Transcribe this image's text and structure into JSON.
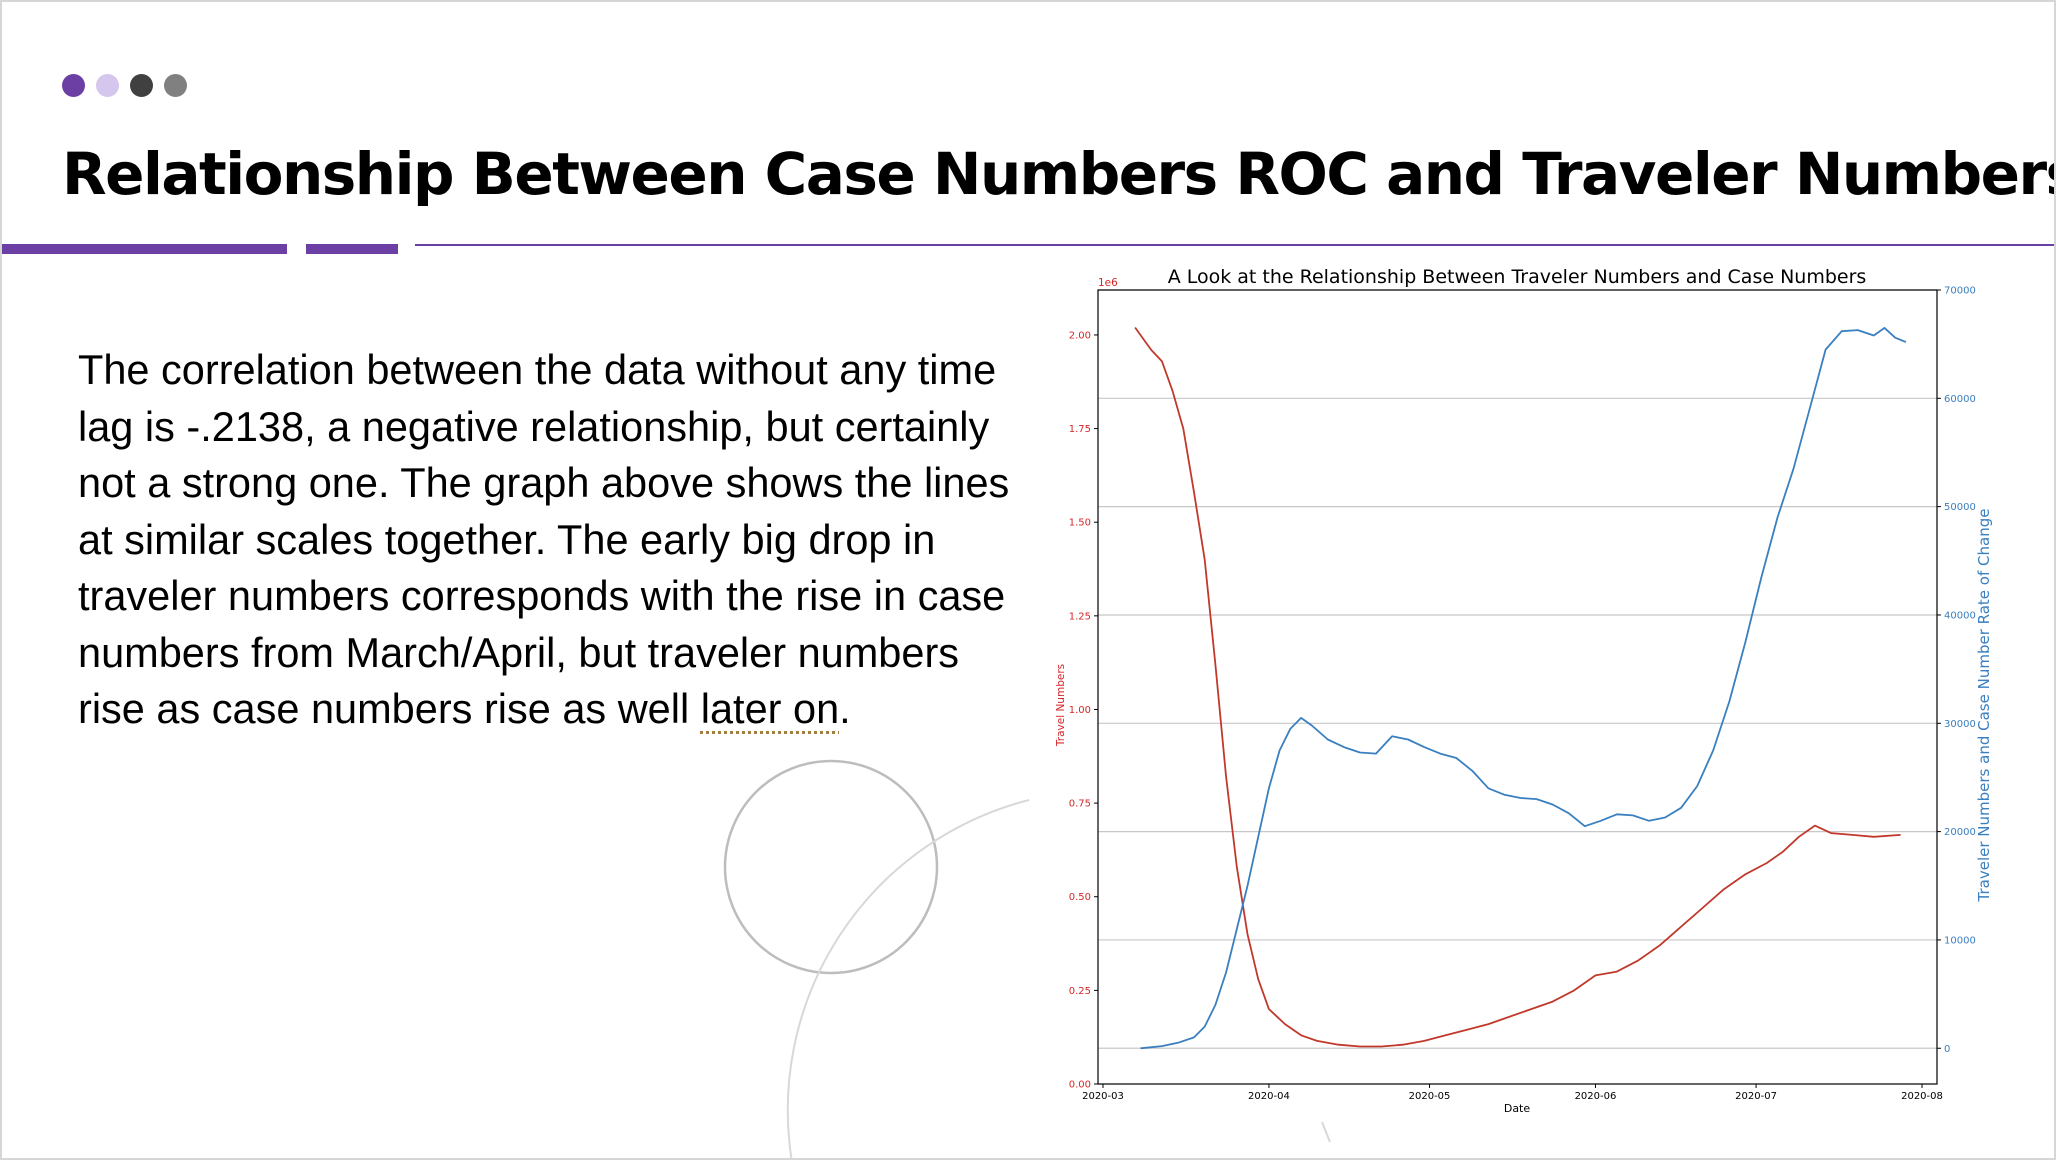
{
  "slide": {
    "title": "Relationship Between Case Numbers ROC and Traveler Numbers",
    "dots": [
      "#6b3fa3",
      "#d5c6ee",
      "#404040",
      "#808080"
    ],
    "accent": "#6b3fa3",
    "body_main": "The correlation between the data without any time lag is -.2138, a negative relationship, but certainly not a strong one.  The graph above shows the lines at similar scales together. The early big drop in traveler numbers corresponds with the rise in case numbers from March/April, but traveler numbers rise as case numbers rise as well ",
    "body_flagged": "later on",
    "body_end": "."
  },
  "chart_data": {
    "type": "line",
    "title": "A Look at the Relationship Between Traveler Numbers and Case Numbers",
    "xlabel": "Date",
    "x_ticks": [
      "2020-03",
      "2020-04",
      "2020-05",
      "2020-06",
      "2020-07",
      "2020-08"
    ],
    "x_range": [
      "2020-03-01",
      "2020-08-01"
    ],
    "y_left": {
      "label": "Travel Numbers",
      "multiplier": "1e6",
      "ticks": [
        "0.00",
        "0.25",
        "0.50",
        "0.75",
        "1.00",
        "1.25",
        "1.50",
        "1.75",
        "2.00"
      ],
      "range": [
        0,
        2.12
      ],
      "color": "#d62728"
    },
    "y_right": {
      "label": "Traveler Numbers and Case Number Rate of Change",
      "ticks": [
        "0",
        "10000",
        "20000",
        "30000",
        "40000",
        "50000",
        "60000",
        "70000"
      ],
      "range": [
        -3300,
        70000
      ],
      "color": "#1f77b4"
    },
    "grid": "horizontal lines on right axis",
    "legend": "none",
    "series": [
      {
        "axis": "left",
        "color": "#c0392b",
        "points": [
          [
            "2020-03-07",
            2.02
          ],
          [
            "2020-03-10",
            1.96
          ],
          [
            "2020-03-12",
            1.93
          ],
          [
            "2020-03-14",
            1.85
          ],
          [
            "2020-03-16",
            1.75
          ],
          [
            "2020-03-18",
            1.58
          ],
          [
            "2020-03-20",
            1.4
          ],
          [
            "2020-03-22",
            1.12
          ],
          [
            "2020-03-24",
            0.82
          ],
          [
            "2020-03-26",
            0.58
          ],
          [
            "2020-03-28",
            0.4
          ],
          [
            "2020-03-30",
            0.28
          ],
          [
            "2020-04-01",
            0.2
          ],
          [
            "2020-04-04",
            0.16
          ],
          [
            "2020-04-07",
            0.13
          ],
          [
            "2020-04-10",
            0.115
          ],
          [
            "2020-04-14",
            0.105
          ],
          [
            "2020-04-18",
            0.1
          ],
          [
            "2020-04-22",
            0.1
          ],
          [
            "2020-04-26",
            0.105
          ],
          [
            "2020-04-30",
            0.115
          ],
          [
            "2020-05-04",
            0.13
          ],
          [
            "2020-05-08",
            0.145
          ],
          [
            "2020-05-12",
            0.16
          ],
          [
            "2020-05-16",
            0.18
          ],
          [
            "2020-05-20",
            0.2
          ],
          [
            "2020-05-24",
            0.22
          ],
          [
            "2020-05-28",
            0.25
          ],
          [
            "2020-06-01",
            0.29
          ],
          [
            "2020-06-05",
            0.3
          ],
          [
            "2020-06-09",
            0.33
          ],
          [
            "2020-06-13",
            0.37
          ],
          [
            "2020-06-17",
            0.42
          ],
          [
            "2020-06-21",
            0.47
          ],
          [
            "2020-06-25",
            0.52
          ],
          [
            "2020-06-29",
            0.56
          ],
          [
            "2020-07-03",
            0.59
          ],
          [
            "2020-07-06",
            0.62
          ],
          [
            "2020-07-09",
            0.66
          ],
          [
            "2020-07-12",
            0.69
          ],
          [
            "2020-07-15",
            0.67
          ],
          [
            "2020-07-19",
            0.665
          ],
          [
            "2020-07-23",
            0.66
          ],
          [
            "2020-07-28",
            0.665
          ]
        ]
      },
      {
        "axis": "right",
        "color": "#3a7fbf",
        "points": [
          [
            "2020-03-08",
            0
          ],
          [
            "2020-03-12",
            200
          ],
          [
            "2020-03-15",
            500
          ],
          [
            "2020-03-18",
            1000
          ],
          [
            "2020-03-20",
            2000
          ],
          [
            "2020-03-22",
            4000
          ],
          [
            "2020-03-24",
            7000
          ],
          [
            "2020-03-26",
            11000
          ],
          [
            "2020-03-28",
            15000
          ],
          [
            "2020-03-30",
            19500
          ],
          [
            "2020-04-01",
            24000
          ],
          [
            "2020-04-03",
            27500
          ],
          [
            "2020-04-05",
            29500
          ],
          [
            "2020-04-07",
            30500
          ],
          [
            "2020-04-09",
            29800
          ],
          [
            "2020-04-12",
            28500
          ],
          [
            "2020-04-15",
            27800
          ],
          [
            "2020-04-18",
            27300
          ],
          [
            "2020-04-21",
            27200
          ],
          [
            "2020-04-24",
            28800
          ],
          [
            "2020-04-27",
            28500
          ],
          [
            "2020-04-30",
            27800
          ],
          [
            "2020-05-03",
            27200
          ],
          [
            "2020-05-06",
            26800
          ],
          [
            "2020-05-09",
            25600
          ],
          [
            "2020-05-12",
            24000
          ],
          [
            "2020-05-15",
            23400
          ],
          [
            "2020-05-18",
            23100
          ],
          [
            "2020-05-21",
            23000
          ],
          [
            "2020-05-24",
            22500
          ],
          [
            "2020-05-27",
            21700
          ],
          [
            "2020-05-30",
            20500
          ],
          [
            "2020-06-02",
            21000
          ],
          [
            "2020-06-05",
            21600
          ],
          [
            "2020-06-08",
            21500
          ],
          [
            "2020-06-11",
            21000
          ],
          [
            "2020-06-14",
            21300
          ],
          [
            "2020-06-17",
            22200
          ],
          [
            "2020-06-20",
            24200
          ],
          [
            "2020-06-23",
            27500
          ],
          [
            "2020-06-26",
            32000
          ],
          [
            "2020-06-29",
            37500
          ],
          [
            "2020-07-02",
            43500
          ],
          [
            "2020-07-05",
            49000
          ],
          [
            "2020-07-08",
            53500
          ],
          [
            "2020-07-11",
            59000
          ],
          [
            "2020-07-14",
            64500
          ],
          [
            "2020-07-17",
            66200
          ],
          [
            "2020-07-20",
            66300
          ],
          [
            "2020-07-23",
            65800
          ],
          [
            "2020-07-25",
            66500
          ],
          [
            "2020-07-27",
            65600
          ],
          [
            "2020-07-29",
            65200
          ]
        ]
      }
    ]
  }
}
